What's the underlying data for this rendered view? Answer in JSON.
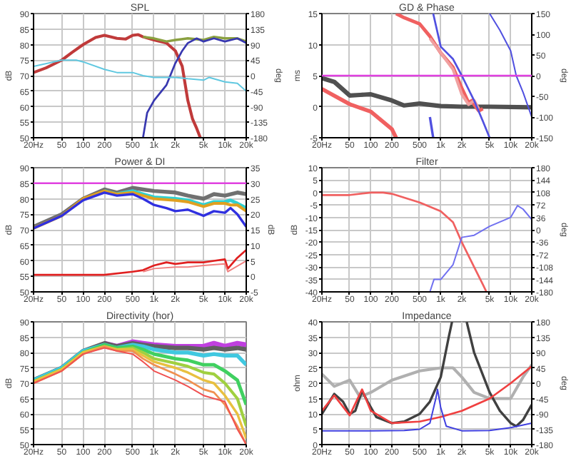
{
  "chart_data": [
    {
      "type": "line",
      "title": "SPL",
      "ylabel": "dB",
      "y2label": "deg",
      "log": "x",
      "grid": true,
      "xlim": [
        20,
        20000
      ],
      "xticks": [
        {
          "value": 20,
          "label": "20Hz"
        },
        50,
        100,
        200,
        500,
        {
          "value": 1000,
          "label": "1k"
        },
        {
          "value": 2000,
          "label": "2k"
        },
        {
          "value": 5000,
          "label": "5k"
        },
        {
          "value": 10000,
          "label": "10k"
        },
        {
          "value": 20000,
          "label": "20k"
        }
      ],
      "ylim": [
        50,
        90
      ],
      "yticks": [
        50,
        55,
        60,
        65,
        70,
        75,
        80,
        85,
        90
      ],
      "y2lim": [
        -180,
        180
      ],
      "y2ticks": [
        -180,
        -135,
        -90,
        -45,
        0,
        45,
        90,
        135,
        180
      ],
      "series": [
        {
          "color": "#c03a3a",
          "x": [
            20,
            30,
            50,
            70,
            100,
            150,
            200,
            300,
            400,
            500,
            600,
            700,
            1000,
            1500,
            2000,
            2500,
            3000,
            3500,
            4000,
            4500
          ],
          "values": [
            71,
            72.5,
            75,
            77.5,
            80,
            82.3,
            83,
            82,
            81.8,
            83,
            83.2,
            82.5,
            81.5,
            80.5,
            78,
            73,
            62,
            56,
            53,
            50
          ]
        },
        {
          "color": "#8aa040",
          "x": [
            700,
            1000,
            1500,
            2000,
            3000,
            5000,
            7000,
            10000,
            15000,
            20000
          ],
          "values": [
            82.5,
            82,
            81,
            81.5,
            82,
            81.5,
            82.5,
            82,
            82,
            81
          ]
        },
        {
          "color": "#3838b0",
          "x": [
            700,
            800,
            1000,
            1500,
            2000,
            2500,
            3000,
            4000,
            5000,
            7000,
            10000,
            15000,
            20000
          ],
          "values": [
            50,
            58,
            62,
            67,
            74,
            78,
            80.5,
            82,
            81,
            82,
            81,
            82,
            80.5
          ]
        },
        {
          "color": "#60c8e0",
          "axis": "y2",
          "x": [
            20,
            50,
            80,
            100,
            200,
            300,
            500,
            700,
            1000,
            2000,
            3000,
            5000,
            6000,
            10000,
            15000,
            20000
          ],
          "values": [
            27,
            45,
            45,
            40,
            18,
            9,
            9,
            0,
            -5,
            -5,
            -9,
            -13,
            -5,
            -18,
            -22,
            -45
          ]
        }
      ]
    },
    {
      "type": "line",
      "title": "GD & Phase",
      "ylabel": "ms",
      "y2label": "deg",
      "log": "x",
      "grid": true,
      "xlim": [
        20,
        20000
      ],
      "xticks": [
        {
          "value": 20,
          "label": "20Hz"
        },
        50,
        100,
        200,
        500,
        {
          "value": 1000,
          "label": "1k"
        },
        {
          "value": 2000,
          "label": "2k"
        },
        {
          "value": 5000,
          "label": "5k"
        },
        {
          "value": 10000,
          "label": "10k"
        },
        {
          "value": 20000,
          "label": "20k"
        }
      ],
      "ylim": [
        -5,
        15
      ],
      "yticks": [
        -5,
        0,
        5,
        10,
        15
      ],
      "y2lim": [
        -150,
        150
      ],
      "y2ticks": [
        -150,
        -100,
        -50,
        0,
        50,
        100,
        150
      ],
      "ref_lines": [
        {
          "axis": "y",
          "value": 5,
          "color": "#e040e0"
        }
      ],
      "series": [
        {
          "color": "#505050",
          "x": [
            20,
            30,
            50,
            70,
            100,
            200,
            300,
            500,
            700,
            1000,
            2000,
            5000,
            20000
          ],
          "values": [
            4.6,
            4,
            1.8,
            1.9,
            2,
            1,
            0.2,
            0.5,
            0.3,
            0.1,
            0,
            0,
            -0.1
          ]
        },
        {
          "color": "#f06060",
          "axis": "y2",
          "x": [
            20,
            50,
            100,
            200,
            230
          ],
          "values": [
            -32,
            -69,
            -87,
            -129,
            -150
          ]
        },
        {
          "color": "#f06060",
          "axis": "y2",
          "x": [
            230,
            300,
            500,
            700,
            1000,
            1500,
            2000,
            2500,
            2800,
            3000,
            3500,
            4000
          ],
          "values": [
            150,
            140,
            125,
            95,
            55,
            20,
            -30,
            -65,
            -60,
            -70,
            -85,
            -80
          ]
        },
        {
          "color": "#f0a0a0",
          "axis": "y2",
          "x": [
            700,
            1000,
            1500,
            2000,
            2500,
            3000,
            3500
          ],
          "values": [
            90,
            55,
            15,
            -45,
            -70,
            -60,
            -80
          ]
        },
        {
          "color": "#5050e0",
          "axis": "y2",
          "x": [
            700,
            780
          ],
          "values": [
            -100,
            -150
          ]
        },
        {
          "color": "#5050e0",
          "axis": "y2",
          "x": [
            780,
            1000,
            1500,
            2000,
            3000,
            4000,
            5000
          ],
          "values": [
            150,
            70,
            40,
            0,
            -60,
            -110,
            -150
          ]
        },
        {
          "color": "#5050e0",
          "axis": "y2",
          "x": [
            5000,
            7000,
            10000,
            12000,
            15000,
            20000
          ],
          "values": [
            150,
            110,
            60,
            0,
            -40,
            -100
          ]
        }
      ]
    },
    {
      "type": "line",
      "title": "Power & DI",
      "ylabel": "dB",
      "y2label": "dB",
      "log": "x",
      "grid": true,
      "xlim": [
        20,
        20000
      ],
      "xticks": [
        {
          "value": 20,
          "label": "20Hz"
        },
        50,
        100,
        200,
        500,
        {
          "value": 1000,
          "label": "1k"
        },
        {
          "value": 2000,
          "label": "2k"
        },
        {
          "value": 5000,
          "label": "5k"
        },
        {
          "value": 10000,
          "label": "10k"
        },
        {
          "value": 20000,
          "label": "20k"
        }
      ],
      "ylim": [
        50,
        90
      ],
      "yticks": [
        50,
        55,
        60,
        65,
        70,
        75,
        80,
        85,
        90
      ],
      "y2lim": [
        -5,
        35
      ],
      "y2ticks": [
        -5,
        0,
        5,
        10,
        15,
        20,
        25,
        30,
        35
      ],
      "ref_lines": [
        {
          "axis": "y",
          "value": 85,
          "color": "#e040e0"
        }
      ],
      "series": [
        {
          "color": "#707070",
          "x": [
            20,
            50,
            100,
            200,
            300,
            500,
            700,
            1000,
            2000,
            3000,
            5000,
            7000,
            10000,
            15000,
            20000
          ],
          "values": [
            71,
            75,
            80,
            83,
            82,
            83.5,
            83,
            82.5,
            82,
            81,
            80,
            81.5,
            81,
            82,
            81.5
          ]
        },
        {
          "color": "#30d0d0",
          "x": [
            200,
            300,
            500,
            700,
            1000,
            2000,
            3000,
            5000,
            7000,
            10000,
            12000,
            15000,
            20000
          ],
          "values": [
            82.5,
            81.5,
            82.5,
            81.5,
            80.5,
            80,
            79.5,
            78,
            79,
            79,
            79.5,
            78.5,
            77
          ]
        },
        {
          "color": "#e0a020",
          "x": [
            20,
            50,
            100,
            200,
            300,
            500,
            700,
            1000,
            2000,
            3000,
            5000,
            7000,
            10000,
            12000,
            15000,
            20000
          ],
          "values": [
            70.5,
            74.5,
            80,
            82.5,
            81.5,
            82,
            81,
            80,
            79.5,
            79,
            77.5,
            78.5,
            78.5,
            78,
            78,
            76
          ]
        },
        {
          "color": "#3030e0",
          "x": [
            20,
            50,
            100,
            200,
            300,
            500,
            700,
            1000,
            1500,
            2000,
            3000,
            5000,
            7000,
            10000,
            12000,
            15000,
            20000
          ],
          "values": [
            70.5,
            74.5,
            79.5,
            82,
            81,
            81.5,
            80,
            78,
            77,
            76,
            76.5,
            74.5,
            76,
            75.5,
            77,
            75,
            71
          ]
        },
        {
          "color": "#e02020",
          "axis": "y2",
          "x": [
            20,
            100,
            200,
            500,
            700,
            1000,
            1500,
            2000,
            3000,
            5000,
            7000,
            10000,
            11000,
            15000,
            20000
          ],
          "values": [
            0.5,
            0.5,
            0.5,
            1.5,
            2,
            3.5,
            4.5,
            4,
            4.5,
            4.5,
            5,
            5.5,
            2.5,
            6,
            8.5
          ]
        },
        {
          "color": "#f08080",
          "axis": "y2",
          "x": [
            700,
            1000,
            2000,
            3000,
            5000,
            10000,
            11000,
            20000
          ],
          "values": [
            1.5,
            2.5,
            3,
            3,
            3.5,
            4,
            1.5,
            5
          ]
        }
      ]
    },
    {
      "type": "line",
      "title": "Filter",
      "ylabel": "dB",
      "y2label": "deg",
      "log": "x",
      "grid": true,
      "xlim": [
        20,
        20000
      ],
      "xticks": [
        {
          "value": 20,
          "label": "20Hz"
        },
        50,
        100,
        200,
        500,
        {
          "value": 1000,
          "label": "1k"
        },
        {
          "value": 2000,
          "label": "2k"
        },
        {
          "value": 5000,
          "label": "5k"
        },
        {
          "value": 10000,
          "label": "10k"
        },
        {
          "value": 20000,
          "label": "20k"
        }
      ],
      "ylim": [
        -40,
        10
      ],
      "yticks": [
        -40,
        -35,
        -30,
        -25,
        -20,
        -15,
        -10,
        -5,
        0,
        5,
        10
      ],
      "y2lim": [
        -180,
        180
      ],
      "y2ticks": [
        -180,
        -144,
        -108,
        -72,
        -36,
        0,
        36,
        72,
        108,
        144,
        180
      ],
      "series": [
        {
          "color": "#f06060",
          "x": [
            20,
            50,
            100,
            150,
            200,
            500,
            1000,
            1500,
            2000,
            3000,
            4000,
            4500
          ],
          "values": [
            -1,
            -1,
            0,
            0,
            -0.5,
            -4,
            -7.5,
            -12,
            -20,
            -30,
            -37,
            -40
          ]
        },
        {
          "color": "#7070f0",
          "axis": "y2",
          "x": [
            700,
            800,
            1000,
            1500,
            2000,
            3000,
            5000,
            10000,
            12500,
            15000,
            20000
          ],
          "values": [
            -180,
            -144,
            -144,
            -101,
            -22,
            -16,
            10,
            36,
            70,
            60,
            30
          ]
        }
      ]
    },
    {
      "type": "line",
      "title": "Directivity (hor)",
      "ylabel": "dB",
      "log": "x",
      "grid": true,
      "xlim": [
        20,
        20000
      ],
      "xticks": [
        {
          "value": 20,
          "label": "20Hz"
        },
        50,
        100,
        200,
        500,
        {
          "value": 1000,
          "label": "1k"
        },
        {
          "value": 2000,
          "label": "2k"
        },
        {
          "value": 5000,
          "label": "5k"
        },
        {
          "value": 10000,
          "label": "10k"
        },
        {
          "value": 20000,
          "label": "20k"
        }
      ],
      "ylim": [
        50,
        90
      ],
      "yticks": [
        50,
        55,
        60,
        65,
        70,
        75,
        80,
        85,
        90
      ],
      "series": [
        {
          "color": "#c040e0",
          "x": [
            200,
            300,
            500,
            700,
            1000,
            2000,
            3000,
            5000,
            7000,
            10000,
            15000,
            20000
          ],
          "values": [
            83,
            82,
            83.5,
            83,
            82.5,
            82,
            82,
            82,
            83,
            82,
            83,
            82.5
          ]
        },
        {
          "color": "#606060",
          "x": [
            20,
            50,
            100,
            200,
            300,
            500,
            700,
            1000,
            2000,
            3000,
            5000,
            7000,
            10000,
            15000,
            20000
          ],
          "values": [
            71,
            75,
            80.5,
            83,
            82,
            83,
            82.5,
            82,
            81.5,
            81.5,
            81,
            81.5,
            81,
            81.5,
            81
          ]
        },
        {
          "color": "#40c8e0",
          "x": [
            20,
            50,
            100,
            200,
            300,
            500,
            700,
            1000,
            2000,
            3000,
            5000,
            7000,
            10000,
            15000,
            20000
          ],
          "values": [
            71,
            75,
            80.5,
            82.5,
            81.5,
            82.5,
            82,
            81,
            80,
            80,
            79,
            79.5,
            79,
            79,
            76
          ]
        },
        {
          "color": "#40d060",
          "x": [
            20,
            50,
            100,
            200,
            300,
            500,
            700,
            1000,
            2000,
            3000,
            5000,
            7000,
            10000,
            15000,
            20000
          ],
          "values": [
            70.5,
            74.5,
            80,
            82.5,
            81.5,
            82,
            81,
            79.5,
            78,
            77.5,
            76,
            76,
            74,
            71,
            63
          ]
        },
        {
          "color": "#a0d040",
          "x": [
            20,
            50,
            100,
            200,
            300,
            500,
            700,
            1000,
            2000,
            3000,
            5000,
            7000,
            10000,
            15000,
            20000
          ],
          "values": [
            70.5,
            74.5,
            80,
            82,
            81,
            81.5,
            80,
            78,
            76.5,
            75.5,
            73.5,
            73,
            70,
            65,
            56
          ]
        },
        {
          "color": "#e8c040",
          "x": [
            20,
            50,
            100,
            200,
            300,
            500,
            700,
            1000,
            2000,
            3000,
            5000,
            7000,
            10000,
            15000,
            20000
          ],
          "values": [
            70.5,
            74.5,
            80,
            82,
            81,
            81,
            79,
            77,
            75,
            73.5,
            71,
            70,
            66,
            60,
            52
          ]
        },
        {
          "color": "#f09050",
          "x": [
            20,
            50,
            100,
            200,
            300,
            500,
            700,
            1000,
            2000,
            3000,
            5000,
            7000,
            10000,
            15000,
            20000
          ],
          "values": [
            70,
            74,
            79.5,
            82,
            80.5,
            80.5,
            78,
            76,
            73,
            71,
            68,
            67,
            63,
            56,
            50
          ]
        },
        {
          "color": "#f05050",
          "x": [
            20,
            50,
            100,
            200,
            300,
            500,
            700,
            1000,
            2000,
            3000,
            5000,
            7000,
            10000,
            15000,
            20000
          ],
          "values": [
            70,
            74,
            79.5,
            81.5,
            80.5,
            79.5,
            77,
            74,
            71,
            69,
            66,
            65,
            64,
            55,
            50
          ]
        }
      ]
    },
    {
      "type": "line",
      "title": "Impedance",
      "ylabel": "ohm",
      "y2label": "deg",
      "log": "x",
      "grid": true,
      "xlim": [
        20,
        20000
      ],
      "xticks": [
        {
          "value": 20,
          "label": "20Hz"
        },
        50,
        100,
        200,
        500,
        {
          "value": 1000,
          "label": "1k"
        },
        {
          "value": 2000,
          "label": "2k"
        },
        {
          "value": 5000,
          "label": "5k"
        },
        {
          "value": 10000,
          "label": "10k"
        },
        {
          "value": 20000,
          "label": "20k"
        }
      ],
      "ylim": [
        0,
        40
      ],
      "yticks": [
        0,
        5,
        10,
        15,
        20,
        25,
        30,
        35,
        40
      ],
      "y2lim": [
        -180,
        180
      ],
      "y2ticks": [
        -180,
        -135,
        -90,
        -45,
        0,
        45,
        90,
        135,
        180
      ],
      "series": [
        {
          "color": "#b0b0b0",
          "axis": "y2",
          "x": [
            20,
            30,
            50,
            70,
            100,
            200,
            500,
            1000,
            1500,
            2000,
            3000,
            5000,
            10000,
            15000,
            20000
          ],
          "values": [
            27,
            -9,
            9,
            -40,
            -27,
            9,
            36,
            45,
            45,
            18,
            -27,
            -45,
            -45,
            18,
            54
          ]
        },
        {
          "color": "#404040",
          "x": [
            20,
            30,
            40,
            50,
            60,
            75,
            90,
            120,
            200,
            300,
            500,
            700,
            1000,
            1300,
            1450,
            1800,
            2350,
            3000,
            5000,
            7000,
            10000,
            12000,
            15000,
            20000
          ],
          "values": [
            10,
            16.5,
            14,
            10,
            11,
            17.5,
            14,
            9,
            7,
            7.5,
            10,
            14,
            22,
            35,
            40,
            null,
            40,
            30,
            17,
            11,
            7,
            6,
            8,
            13
          ]
        },
        {
          "color": "#f04040",
          "x": [
            20,
            30,
            50,
            75,
            100,
            200,
            500,
            1000,
            2000,
            5000,
            10000,
            20000
          ],
          "values": [
            11,
            16,
            9.5,
            18,
            11,
            7,
            7.5,
            9,
            11,
            15,
            20,
            25.5
          ]
        },
        {
          "color": "#4040e0",
          "x": [
            20,
            100,
            300,
            500,
            700,
            850,
            900,
            1000,
            1200,
            2000,
            5000,
            10000,
            20000
          ],
          "values": [
            4.5,
            4.5,
            4.6,
            5,
            7,
            15,
            18,
            12,
            6,
            4.5,
            4.6,
            5.5,
            7
          ]
        }
      ]
    }
  ]
}
